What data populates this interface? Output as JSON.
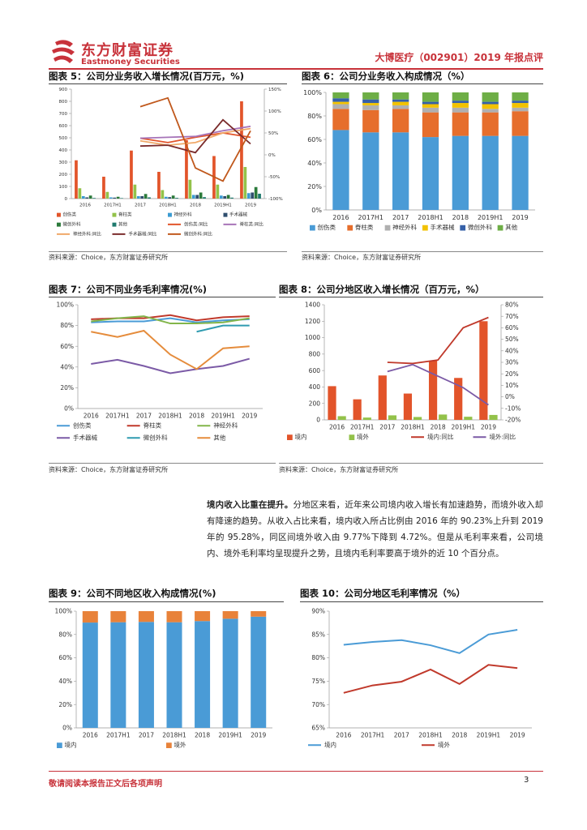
{
  "header": {
    "brand_cn": "东方财富证券",
    "brand_en": "Eastmoney Securities",
    "report_title": "大博医疗（002901）2019 年报点评",
    "brand_color": "#c8323a"
  },
  "figures": {
    "fig5": {
      "title": "图表 5：公司分业务收入增长情况(百万元，%)",
      "source": "资料来源：Choice，东方财富证券研究所"
    },
    "fig6": {
      "title": "图表 6：公司分业务收入构成情况（%）",
      "source": "资料来源：Choice，东方财富证券研究所"
    },
    "fig7": {
      "title": "图表 7：公司不同业务毛利率情况(%)",
      "source": "资料来源：Choice，东方财富证券研究所"
    },
    "fig8": {
      "title": "图表 8：公司分地区收入增长情况（百万元，%）",
      "source": "资料来源：Choice，东方财富证券研究所"
    },
    "fig9": {
      "title": "图表 9：公司不同地区收入构成情况(%)"
    },
    "fig10": {
      "title": "图表 10：公司分地区毛利率情况（%）"
    }
  },
  "paragraph": {
    "lead": "境内收入比重在提升。",
    "body": "分地区来看，近年来公司境内收入增长有加速趋势，而境外收入却有降速的趋势。从收入占比来看，境内收入所占比例由 2016 年的 90.23%上升到 2019 年的 95.28%，同区间境外收入由 9.77%下降到 4.72%。但是从毛利率来看，公司境内、境外毛利率均呈现提升之势，且境内毛利率要高于境外的近 10 个百分点。"
  },
  "footer": {
    "note": "敬请阅读本报告正文后各项声明",
    "page": "3"
  },
  "chart_data": [
    {
      "id": "fig5",
      "type": "bar",
      "categories": [
        "2016",
        "2017H1",
        "2017",
        "2018H1",
        "2018",
        "2019H1",
        "2019"
      ],
      "ylim": [
        0,
        900
      ],
      "yticks": [
        0,
        100,
        200,
        300,
        400,
        500,
        600,
        700,
        800,
        900
      ],
      "y2lim": [
        -100,
        150
      ],
      "y2ticks": [
        "-100%",
        "-50%",
        "0%",
        "50%",
        "100%",
        "150%"
      ],
      "y2ticks_values": [
        -100,
        -50,
        0,
        50,
        100,
        150
      ],
      "series": [
        {
          "name": "创伤类",
          "color": "#e2542a",
          "values": [
            315,
            180,
            395,
            220,
            480,
            350,
            800
          ]
        },
        {
          "name": "脊柱类",
          "color": "#93c24a",
          "values": [
            85,
            55,
            115,
            70,
            155,
            115,
            260
          ]
        },
        {
          "name": "神经外科",
          "color": "#3b9bd2",
          "values": [
            20,
            10,
            20,
            15,
            30,
            25,
            45
          ]
        },
        {
          "name": "手术器械",
          "color": "#2f4e6e",
          "values": [
            10,
            8,
            20,
            12,
            30,
            20,
            50
          ]
        },
        {
          "name": "微创外科",
          "color": "#2b7a3a",
          "values": [
            25,
            15,
            38,
            25,
            50,
            30,
            95
          ]
        },
        {
          "name": "其他",
          "color": "#1f7a6e",
          "values": [
            5,
            4,
            10,
            6,
            12,
            8,
            40
          ]
        }
      ],
      "line_series": [
        {
          "name": "创伤类:同比",
          "color": "#e2542a",
          "values": [
            null,
            null,
            38,
            28,
            40,
            50,
            40
          ]
        },
        {
          "name": "脊柱类:同比",
          "color": "#a673b8",
          "values": [
            null,
            null,
            38,
            40,
            42,
            55,
            65
          ]
        },
        {
          "name": "神经外科:同比",
          "color": "#f0a868",
          "values": [
            null,
            null,
            32,
            22,
            28,
            50,
            60
          ]
        },
        {
          "name": "手术器械:同比",
          "color": "#7a2a2a",
          "values": [
            null,
            null,
            20,
            22,
            5,
            80,
            25
          ]
        },
        {
          "name": "微创外科:同比",
          "color": "#c0581c",
          "values": [
            null,
            null,
            110,
            130,
            -30,
            -60,
            55
          ]
        }
      ],
      "legend_order": [
        "创伤类",
        "脊柱类",
        "神经外科",
        "手术器械",
        "微创外科",
        "其他",
        "创伤类:同比",
        "脊柱类:同比",
        "神经外科:同比",
        "手术器械:同比",
        "微创外科:同比"
      ]
    },
    {
      "id": "fig6",
      "type": "bar",
      "stacked": true,
      "categories": [
        "2016",
        "2017H1",
        "2017",
        "2018H1",
        "2018",
        "2019H1",
        "2019"
      ],
      "ylim": [
        0,
        100
      ],
      "yticks": [
        "0%",
        "20%",
        "40%",
        "60%",
        "80%",
        "100%"
      ],
      "series": [
        {
          "name": "创伤类",
          "color": "#4a9bd6",
          "values": [
            68,
            66,
            66,
            62,
            63,
            63,
            63
          ]
        },
        {
          "name": "脊柱类",
          "color": "#e66e2c",
          "values": [
            18,
            19,
            20,
            21,
            20,
            20,
            21
          ]
        },
        {
          "name": "神经外科",
          "color": "#b0b0b0",
          "values": [
            4,
            4,
            3,
            4,
            4,
            3,
            3
          ]
        },
        {
          "name": "手术器械",
          "color": "#f2c200",
          "values": [
            2,
            2,
            3,
            3,
            4,
            4,
            4
          ]
        },
        {
          "name": "微创外科",
          "color": "#3560a8",
          "values": [
            3,
            3,
            2,
            2,
            2,
            2,
            2
          ]
        },
        {
          "name": "其他",
          "color": "#6eae46",
          "values": [
            5,
            6,
            6,
            8,
            7,
            8,
            7
          ]
        }
      ]
    },
    {
      "id": "fig7",
      "type": "line",
      "categories": [
        "2016",
        "2017H1",
        "2017",
        "2018H1",
        "2018",
        "2019H1",
        "2019"
      ],
      "ylim": [
        0,
        100
      ],
      "yticks": [
        "0%",
        "20%",
        "40%",
        "60%",
        "80%",
        "100%"
      ],
      "series": [
        {
          "name": "创伤类",
          "color": "#4a9bd6",
          "values": [
            83,
            84,
            84,
            87,
            83,
            85,
            86
          ]
        },
        {
          "name": "脊柱类",
          "color": "#c0392b",
          "values": [
            86,
            87,
            87,
            90,
            85,
            88,
            89
          ]
        },
        {
          "name": "神经外科",
          "color": "#82b54a",
          "values": [
            84,
            87,
            89,
            82,
            82,
            83,
            87
          ]
        },
        {
          "name": "手术器械",
          "color": "#7b5aa6",
          "values": [
            43,
            47,
            41,
            34,
            38,
            41,
            48
          ]
        },
        {
          "name": "微创外科",
          "color": "#2f9bb0",
          "values": [
            null,
            null,
            null,
            null,
            74,
            80,
            80
          ]
        },
        {
          "name": "其他",
          "color": "#e58c3c",
          "values": [
            74,
            69,
            75,
            52,
            38,
            58,
            60
          ]
        }
      ]
    },
    {
      "id": "fig8",
      "type": "bar",
      "categories": [
        "2016",
        "2017H1",
        "2017",
        "2018H1",
        "2018",
        "2019H1",
        "2019"
      ],
      "ylim": [
        0,
        1400
      ],
      "yticks": [
        0,
        200,
        400,
        600,
        800,
        1000,
        1200,
        1400
      ],
      "y2lim": [
        -20,
        80
      ],
      "y2ticks": [
        "-20%",
        "-10%",
        "0%",
        "10%",
        "20%",
        "30%",
        "40%",
        "50%",
        "60%",
        "70%",
        "80%"
      ],
      "y2ticks_values": [
        -20,
        -10,
        0,
        10,
        20,
        30,
        40,
        50,
        60,
        70,
        80
      ],
      "series": [
        {
          "name": "境内",
          "color": "#e2542a",
          "values": [
            410,
            250,
            540,
            320,
            720,
            510,
            1200
          ]
        },
        {
          "name": "境外",
          "color": "#93c24a",
          "values": [
            45,
            28,
            55,
            35,
            65,
            38,
            60
          ]
        }
      ],
      "line_series": [
        {
          "name": "境内:同比",
          "color": "#c0392b",
          "values": [
            null,
            null,
            30,
            29,
            32,
            60,
            69
          ]
        },
        {
          "name": "境外:同比",
          "color": "#7b5aa6",
          "values": [
            null,
            null,
            22,
            28,
            18,
            8,
            -7
          ]
        }
      ]
    },
    {
      "id": "fig9",
      "type": "bar",
      "stacked": true,
      "categories": [
        "2016",
        "2017H1",
        "2017",
        "2018H1",
        "2018",
        "2019H1",
        "2019"
      ],
      "ylim": [
        0,
        100
      ],
      "yticks": [
        "0%",
        "20%",
        "40%",
        "60%",
        "80%",
        "100%"
      ],
      "series": [
        {
          "name": "境内",
          "color": "#4a9bd6",
          "values": [
            90.23,
            90.5,
            90.8,
            90.5,
            91.5,
            93.5,
            95.28
          ]
        },
        {
          "name": "境外",
          "color": "#e8823a",
          "values": [
            9.77,
            9.5,
            9.2,
            9.5,
            8.5,
            6.5,
            4.72
          ]
        }
      ]
    },
    {
      "id": "fig10",
      "type": "line",
      "categories": [
        "2016",
        "2017H1",
        "2017",
        "2018H1",
        "2018",
        "2019H1",
        "2019"
      ],
      "ylim": [
        65,
        90
      ],
      "yticks": [
        "65%",
        "70%",
        "75%",
        "80%",
        "85%",
        "90%"
      ],
      "yticks_values": [
        65,
        70,
        75,
        80,
        85,
        90
      ],
      "series": [
        {
          "name": "境内",
          "color": "#4a9bd6",
          "values": [
            82.8,
            83.4,
            83.8,
            82.7,
            81.0,
            85.0,
            86.0
          ]
        },
        {
          "name": "境外",
          "color": "#c0392b",
          "values": [
            72.5,
            74.1,
            74.9,
            77.5,
            74.4,
            78.5,
            77.8
          ]
        }
      ]
    }
  ]
}
